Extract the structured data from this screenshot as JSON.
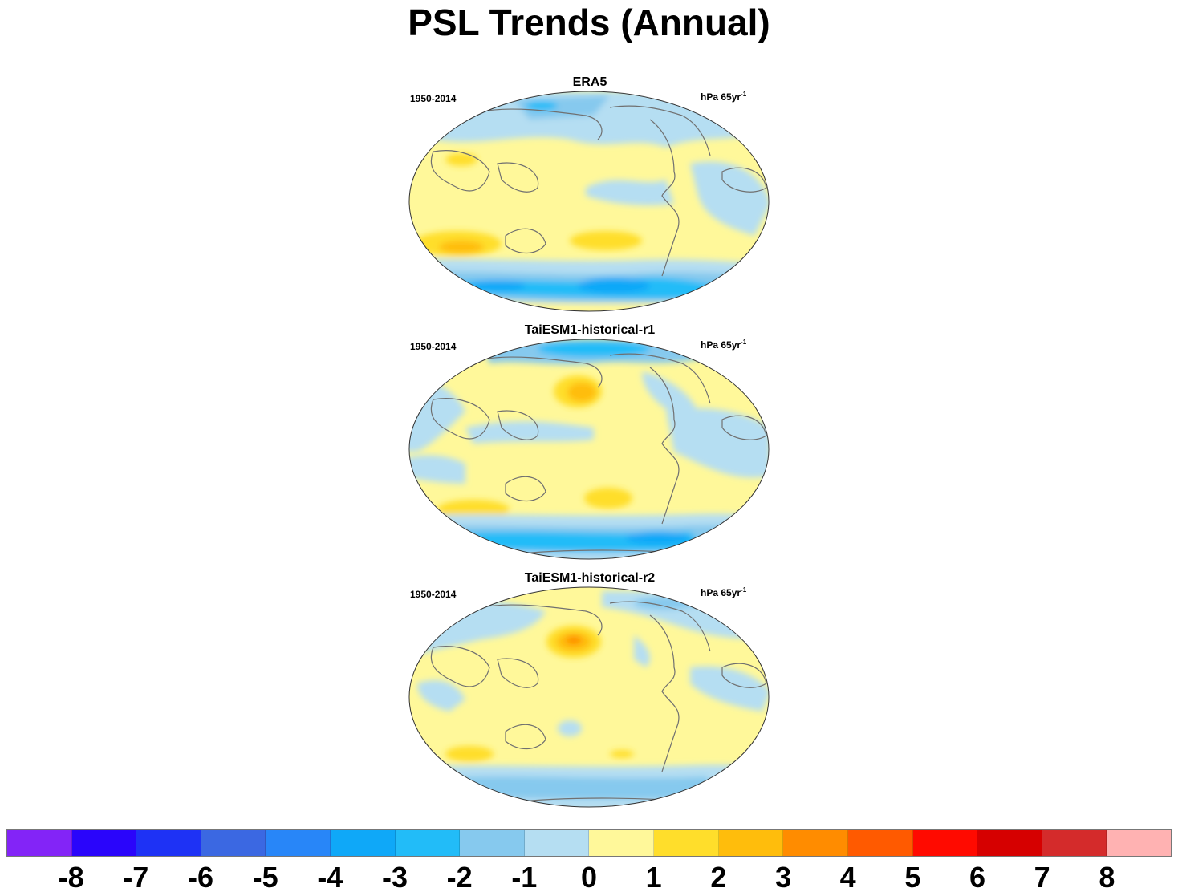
{
  "title": "PSL Trends (Annual)",
  "panels": [
    {
      "title": "ERA5",
      "period": "1950-2014",
      "units_main": "hPa 65yr",
      "units_exp": "-1"
    },
    {
      "title": "TaiESM1-historical-r1",
      "period": "1950-2014",
      "units_main": "hPa 65yr",
      "units_exp": "-1"
    },
    {
      "title": "TaiESM1-historical-r2",
      "period": "1950-2014",
      "units_main": "hPa 65yr",
      "units_exp": "-1"
    }
  ],
  "colors": {
    "ocean_neutral": "#fff89a",
    "light_blue": "#b5def2",
    "mid_blue": "#86c9ee",
    "blue": "#22bcf8",
    "deep_blue": "#0fa8f8",
    "yellow": "#ffde2b",
    "orange": "#ffbd0c",
    "dark_orange": "#ff8c00",
    "coastline": "#707070"
  },
  "colorbar": {
    "colors": [
      "#8324f7",
      "#2a05fb",
      "#1e32f5",
      "#3b68e2",
      "#2886f8",
      "#0fa8f8",
      "#22bcf8",
      "#86c9ee",
      "#b5def2",
      "#fff89a",
      "#ffde2b",
      "#ffbd0c",
      "#ff8c00",
      "#ff5a00",
      "#ff0a00",
      "#d60000",
      "#d42b2b",
      "#ffb2b2"
    ],
    "labels": [
      "-8",
      "-7",
      "-6",
      "-5",
      "-4",
      "-3",
      "-2",
      "-1",
      "0",
      "1",
      "2",
      "3",
      "4",
      "5",
      "6",
      "7",
      "8"
    ]
  },
  "chart_data": {
    "type": "heatmap",
    "title": "PSL Trends (Annual)",
    "units": "hPa 65yr-1",
    "period": "1950-2014",
    "levels": [
      -8,
      -7,
      -6,
      -5,
      -4,
      -3,
      -2,
      -1,
      0,
      1,
      2,
      3,
      4,
      5,
      6,
      7,
      8
    ],
    "panels": [
      "ERA5",
      "TaiESM1-historical-r1",
      "TaiESM1-historical-r2"
    ]
  }
}
